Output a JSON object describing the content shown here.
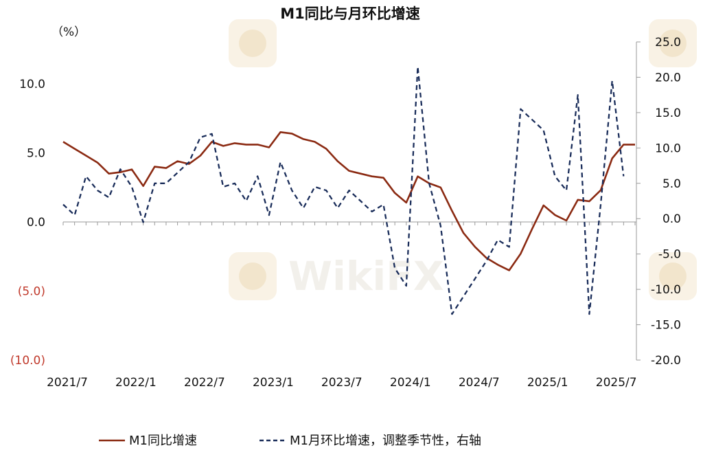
{
  "chart_data": {
    "type": "line",
    "title": "M1同比与月环比增速",
    "left_unit": "（%）",
    "x_tick_labels": [
      "2021/7",
      "2022/1",
      "2022/7",
      "2023/1",
      "2023/7",
      "2024/1",
      "2024/7",
      "2025/1",
      "2025/7"
    ],
    "left_axis": {
      "ylim": [
        -10,
        10
      ],
      "ticks": [
        10,
        5,
        0,
        -5,
        -10
      ],
      "tick_labels": [
        "10.0",
        "5.0",
        "0.0",
        "(5.0)",
        "(10.0)"
      ]
    },
    "right_axis": {
      "ylim": [
        -20,
        25
      ],
      "ticks": [
        25,
        20,
        15,
        10,
        5,
        0,
        -5,
        -10,
        -15,
        -20
      ],
      "tick_labels": [
        "25.0",
        "20.0",
        "15.0",
        "10.0",
        "5.0",
        "0.0",
        "-5.0",
        "-10.0",
        "-15.0",
        "-20.0"
      ]
    },
    "x_start": "2021/7",
    "series": [
      {
        "name": "M1同比增速",
        "axis": "left",
        "color": "#8b2a12",
        "style": "solid",
        "values": [
          5.8,
          5.3,
          4.8,
          4.3,
          3.5,
          3.6,
          3.8,
          2.6,
          4.0,
          3.9,
          4.4,
          4.2,
          4.8,
          5.8,
          5.5,
          5.7,
          5.6,
          5.6,
          5.4,
          6.5,
          6.4,
          6.0,
          5.8,
          5.3,
          4.4,
          3.7,
          3.5,
          3.3,
          3.2,
          2.1,
          1.4,
          3.3,
          2.8,
          2.5,
          0.8,
          -0.8,
          -1.8,
          -2.6,
          -3.1,
          -3.5,
          -2.3,
          -0.5,
          1.2,
          0.5,
          0.1,
          1.6,
          1.5,
          2.3,
          4.6,
          5.6,
          5.6
        ]
      },
      {
        "name": "M1月环比增速，调整季节性，右轴",
        "axis": "right",
        "color": "#1a2d5a",
        "style": "dashed",
        "values": [
          2.0,
          0.5,
          6.0,
          4.0,
          3.0,
          7.0,
          4.5,
          -0.5,
          5.0,
          5.0,
          6.5,
          8.0,
          11.5,
          12.0,
          4.5,
          5.0,
          2.5,
          6.0,
          0.5,
          8.0,
          4.0,
          1.5,
          4.5,
          4.0,
          1.5,
          4.0,
          2.5,
          1.0,
          2.0,
          -7.0,
          -9.5,
          21.5,
          5.0,
          -1.0,
          -13.5,
          -11.0,
          -8.5,
          -6.0,
          -3.0,
          -4.0,
          15.5,
          14.0,
          12.5,
          6.0,
          4.0,
          17.5,
          -13.5,
          2.0,
          19.5,
          6.0
        ]
      }
    ],
    "legend": {
      "position": "bottom",
      "items": [
        "M1同比增速",
        "M1月环比增速，调整季节性，右轴"
      ]
    },
    "grid": false
  }
}
